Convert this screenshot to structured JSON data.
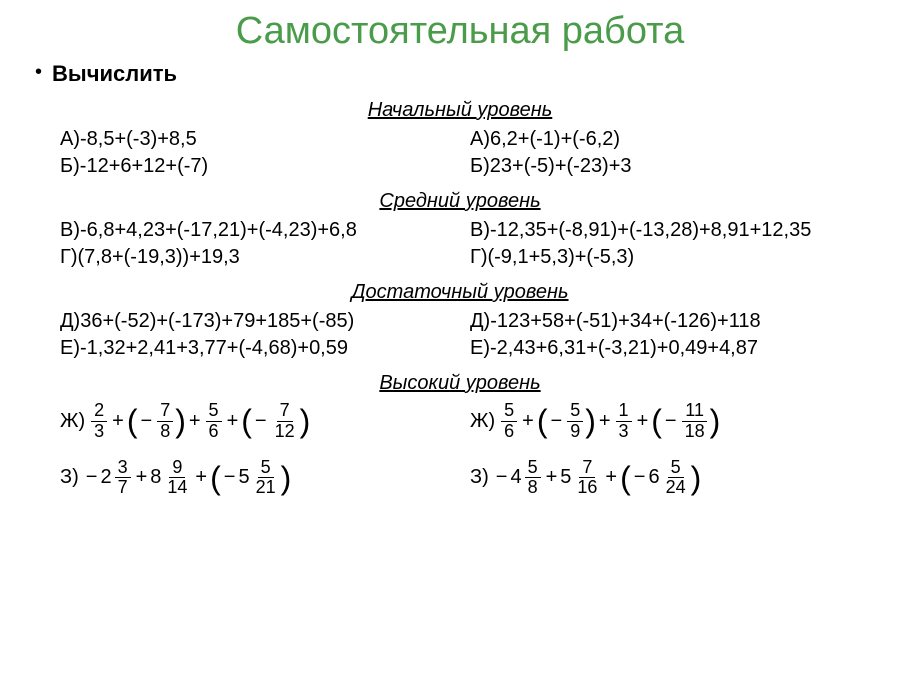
{
  "title": "Самостоятельная работа",
  "subtitle": "Вычислить",
  "levels": {
    "beginner": {
      "header": "Начальный уровень",
      "rows": [
        {
          "left": "А)-8,5+(-3)+8,5",
          "right": "А)6,2+(-1)+(-6,2)"
        },
        {
          "left": "Б)-12+6+12+(-7)",
          "right": "Б)23+(-5)+(-23)+3"
        }
      ]
    },
    "middle": {
      "header": "Средний уровень",
      "rows": [
        {
          "left": "В)-6,8+4,23+(-17,21)+(-4,23)+6,8",
          "right": "В)-12,35+(-8,91)+(-13,28)+8,91+12,35"
        },
        {
          "left": "Г)(7,8+(-19,3))+19,3",
          "right": "Г)(-9,1+5,3)+(-5,3)"
        }
      ]
    },
    "sufficient": {
      "header": "Достаточный уровень",
      "rows": [
        {
          "left": "Д)36+(-52)+(-173)+79+185+(-85)",
          "right": "Д)-123+58+(-51)+34+(-126)+118"
        },
        {
          "left": "Е)-1,32+2,41+3,77+(-4,68)+0,59",
          "right": "Е)-2,43+6,31+(-3,21)+0,49+4,87"
        }
      ]
    },
    "high": {
      "header": "Высокий уровень",
      "rows": [
        {
          "left": {
            "label": "Ж)",
            "terms": [
              {
                "n": "2",
                "d": "3"
              },
              "+",
              "(",
              "-",
              {
                "n": "7",
                "d": "8"
              },
              ")",
              "+",
              {
                "n": "5",
                "d": "6"
              },
              "+",
              "(",
              "-",
              {
                "n": "7",
                "d": "12"
              },
              ")"
            ]
          },
          "right": {
            "label": "Ж)",
            "terms": [
              {
                "n": "5",
                "d": "6"
              },
              "+",
              "(",
              "-",
              {
                "n": "5",
                "d": "9"
              },
              ")",
              "+",
              {
                "n": "1",
                "d": "3"
              },
              "+",
              "(",
              "-",
              {
                "n": "11",
                "d": "18"
              },
              ")"
            ]
          }
        },
        {
          "left": {
            "label": "З)",
            "terms": [
              "-",
              {
                "w": "2",
                "n": "3",
                "d": "7"
              },
              "+",
              {
                "w": "8",
                "n": "9",
                "d": "14"
              },
              "+",
              "(",
              "-",
              {
                "w": "5",
                "n": "5",
                "d": "21"
              },
              ")"
            ]
          },
          "right": {
            "label": "З)",
            "terms": [
              "-",
              {
                "w": "4",
                "n": "5",
                "d": "8"
              },
              "+",
              {
                "w": "5",
                "n": "7",
                "d": "16"
              },
              "+",
              "(",
              "-",
              {
                "w": "6",
                "n": "5",
                "d": "24"
              },
              ")"
            ]
          }
        }
      ]
    }
  },
  "colors": {
    "title": "#4a9b4a",
    "text": "#000000",
    "background": "#ffffff"
  }
}
